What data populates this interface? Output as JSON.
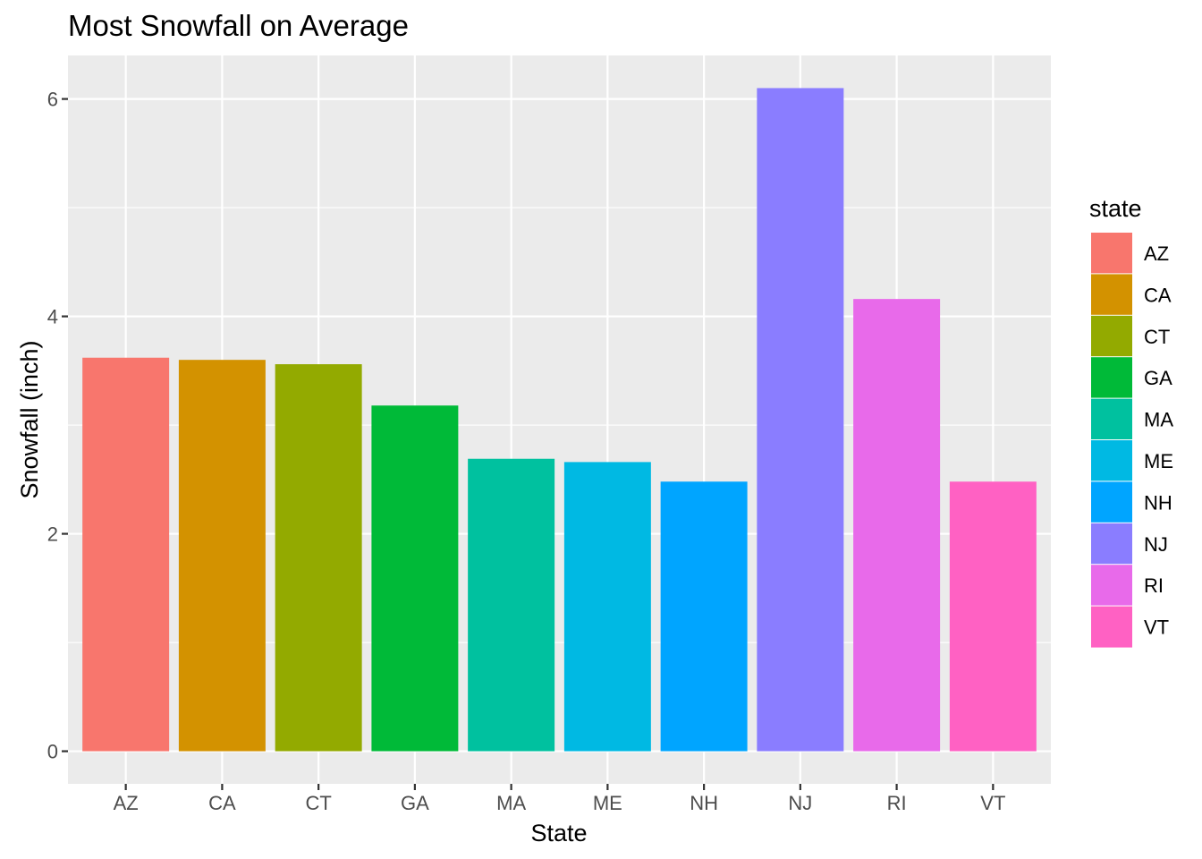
{
  "chart_data": {
    "type": "bar",
    "title": "Most Snowfall on Average",
    "xlabel": "State",
    "ylabel": "Snowfall (inch)",
    "categories": [
      "AZ",
      "CA",
      "CT",
      "GA",
      "MA",
      "ME",
      "NH",
      "NJ",
      "RI",
      "VT"
    ],
    "values": [
      3.62,
      3.6,
      3.56,
      3.18,
      2.69,
      2.66,
      2.48,
      6.1,
      4.16,
      2.48
    ],
    "colors": [
      "#F8766D",
      "#D39200",
      "#93AA00",
      "#00BA38",
      "#00C19F",
      "#00B9E3",
      "#00A5FF",
      "#8A7DFF",
      "#E86AEA",
      "#FF61C3"
    ],
    "ylim": [
      -0.3,
      6.4
    ],
    "yticks": [
      0,
      2,
      4,
      6
    ],
    "grid": true,
    "panel_background": "#EBEBEB",
    "grid_color": "#FFFFFF",
    "legend": {
      "title": "state",
      "position": "right"
    }
  }
}
